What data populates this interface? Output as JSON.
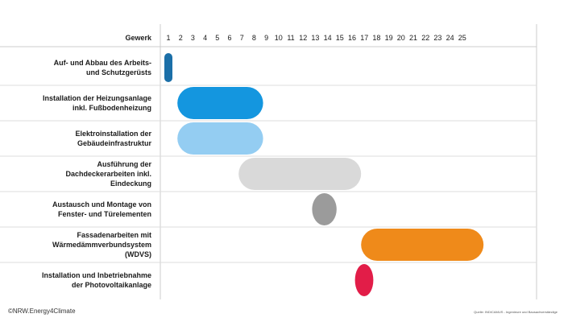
{
  "chart_data": {
    "type": "gantt",
    "axis_label": "Gewerk",
    "weeks": [
      "1",
      "2",
      "3",
      "4",
      "5",
      "6",
      "7",
      "8",
      "9",
      "10",
      "11",
      "12",
      "13",
      "14",
      "15",
      "16",
      "17",
      "18",
      "19",
      "20",
      "21",
      "22",
      "23",
      "24",
      "25"
    ],
    "tasks": [
      {
        "label": "Auf- und Abbau des Arbeits-\nund Schutzgerüsts",
        "start": 1,
        "end": 1,
        "color": "#1b6fa8"
      },
      {
        "label": "Installation der Heizungsanlage\ninkl. Fußbodenheizung",
        "start": 2,
        "end": 9,
        "color": "#1496df"
      },
      {
        "label": "Elektroinstallation der\nGebäudeinfrastruktur",
        "start": 2,
        "end": 9,
        "color": "#94cdf2"
      },
      {
        "label": "Ausführung der\nDachdeckerarbeiten inkl.\nEindeckung",
        "start": 7,
        "end": 17,
        "color": "#d9d9d9"
      },
      {
        "label": "Austausch und Montage von\nFenster- und Türelementen",
        "start": 13,
        "end": 15,
        "color": "#9b9b9b"
      },
      {
        "label": "Fassadenarbeiten mit\nWärmedämmverbundsystem\n(WDVS)",
        "start": 17,
        "end": 27,
        "color": "#ef8a1a"
      },
      {
        "label": "Installation und Inbetriebnahme\nder Photovoltaikanlage",
        "start": 16.5,
        "end": 18,
        "color": "#e21d48"
      }
    ]
  },
  "footer": {
    "copyright": "©NRW.Energy4Climate",
    "source": "Quelle: INDICAMUS - Ingenieure und Bausachverständige"
  }
}
